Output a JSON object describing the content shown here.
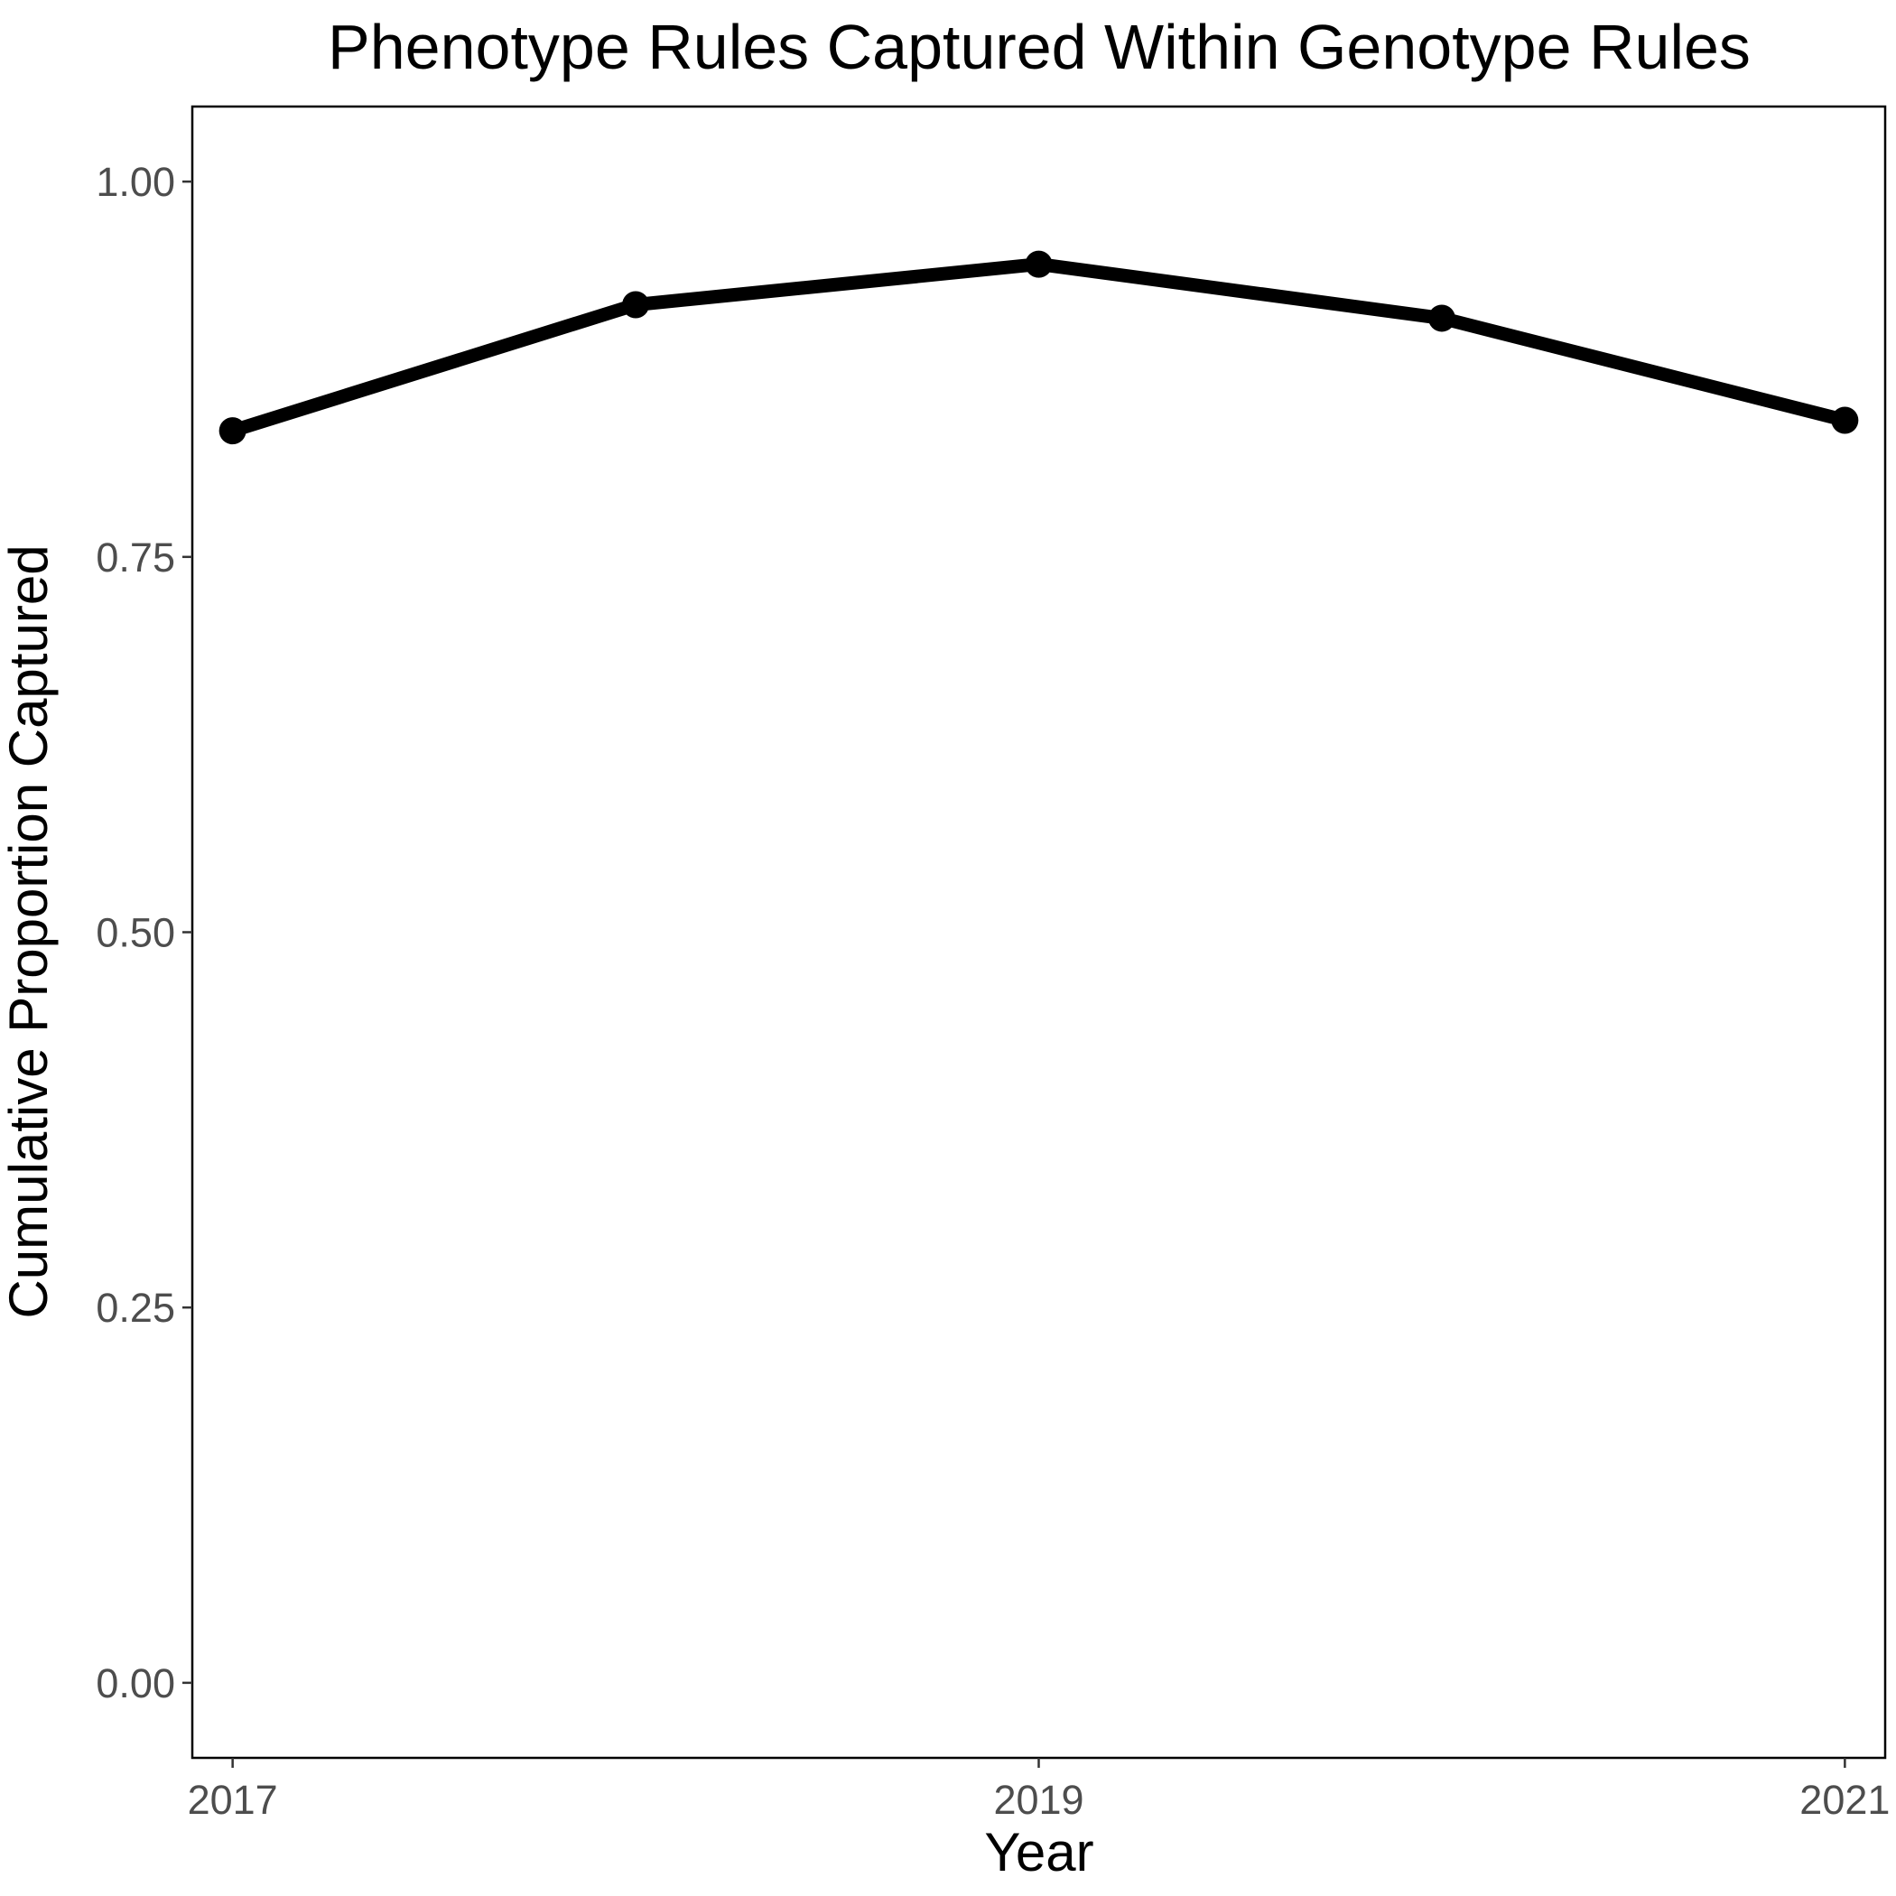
{
  "chart_data": {
    "type": "line",
    "title": "Phenotype Rules Captured Within Genotype Rules",
    "xlabel": "Year",
    "ylabel": "Cumulative Proportion Captured",
    "x": [
      2017,
      2018,
      2019,
      2020,
      2021
    ],
    "series": [
      {
        "values": [
          0.834,
          0.918,
          0.945,
          0.909,
          0.841
        ]
      }
    ],
    "xlim": [
      2016.9,
      2021.1
    ],
    "ylim": [
      -0.05,
      1.05
    ],
    "xticks": [
      2017,
      2019,
      2021
    ],
    "xtick_labels": [
      "2017",
      "2019",
      "2021"
    ],
    "yticks": [
      0,
      0.25,
      0.5,
      0.75,
      1
    ],
    "ytick_labels": [
      "0.00",
      "0.25",
      "0.50",
      "0.75",
      "1.00"
    ],
    "grid": false,
    "legend": "none",
    "line_color": "#000000",
    "tick_label_color": "#4d4d4d"
  }
}
